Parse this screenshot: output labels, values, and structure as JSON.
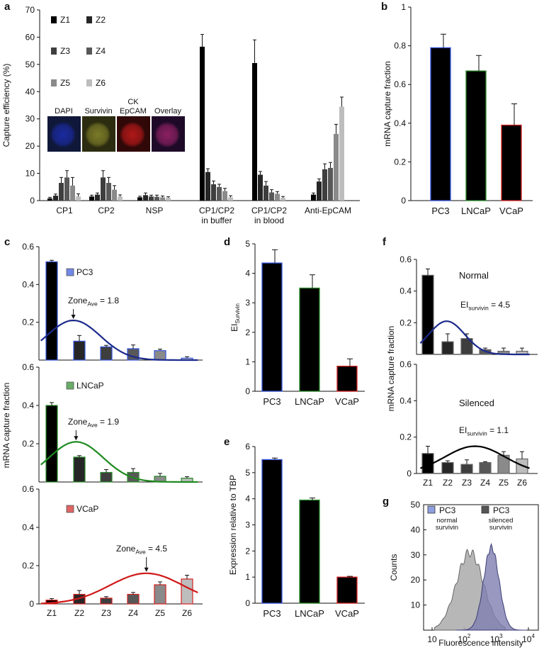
{
  "colors": {
    "PC3": "#3355dd",
    "LNCaP": "#2a8a2a",
    "VCaP": "#d22222",
    "Z1": "#000000",
    "Z2": "#262626",
    "Z3": "#3e3e3e",
    "Z4": "#585858",
    "Z5": "#8a8a8a",
    "Z6": "#bdbdbd",
    "fitPC3": "#1c2a8c",
    "fitLNCaP": "#1f8a1f",
    "fitVCaP": "#d01818",
    "fitSilenced": "#000000",
    "histNormal": "#aaaaaa",
    "histSilenced": "#7e7eb0"
  },
  "chart_data": [
    {
      "panel": "a",
      "type": "bar",
      "ylabel": "Capture efficiency (%)",
      "ylim": [
        0,
        70
      ],
      "yticks": [
        "0",
        "10",
        "20",
        "30",
        "40",
        "50",
        "60",
        "70"
      ],
      "categories": [
        "CP1",
        "CP2",
        "NSP",
        "CP1/CP2|in buffer",
        "CP1/CP2|in blood",
        "Anti-EpCAM"
      ],
      "legend": [
        "Z1",
        "Z2",
        "Z3",
        "Z4",
        "Z5",
        "Z6"
      ],
      "series": [
        {
          "name": "Z1",
          "values": [
            0.8,
            1.5,
            1.2,
            56.5,
            50.5,
            2.2
          ],
          "errors": [
            0.4,
            0.5,
            0.4,
            4.5,
            8.5,
            0.6
          ]
        },
        {
          "name": "Z2",
          "values": [
            1.8,
            2.2,
            2.0,
            10.5,
            9.5,
            7.0
          ],
          "errors": [
            0.6,
            0.6,
            0.8,
            1.2,
            1.2,
            1.0
          ]
        },
        {
          "name": "Z3",
          "values": [
            6.5,
            8.5,
            1.5,
            6.0,
            5.5,
            11.5
          ],
          "errors": [
            2.0,
            2.5,
            0.5,
            1.2,
            1.5,
            2.0
          ]
        },
        {
          "name": "Z4",
          "values": [
            8.5,
            6.5,
            1.4,
            5.0,
            3.0,
            12.0
          ],
          "errors": [
            2.5,
            2.0,
            0.6,
            1.0,
            1.0,
            2.0
          ]
        },
        {
          "name": "Z5",
          "values": [
            5.5,
            4.0,
            1.2,
            3.5,
            2.5,
            24.5
          ],
          "errors": [
            3.0,
            1.5,
            0.5,
            1.0,
            0.8,
            3.5
          ]
        },
        {
          "name": "Z6",
          "values": [
            1.5,
            1.5,
            1.0,
            1.2,
            1.0,
            34.5
          ],
          "errors": [
            1.0,
            0.6,
            0.4,
            0.6,
            0.5,
            3.5
          ]
        }
      ],
      "inset_labels": [
        "DAPI",
        "Survivin",
        "CK|EpCAM",
        "Overlay"
      ]
    },
    {
      "panel": "b",
      "type": "bar",
      "ylabel": "mRNA capture fraction",
      "ylim": [
        0,
        1
      ],
      "yticks": [
        "0",
        "0.2",
        "0.4",
        "0.6",
        "0.8",
        "1"
      ],
      "categories": [
        "PC3",
        "LNCaP",
        "VCaP"
      ],
      "values": [
        0.79,
        0.67,
        0.39
      ],
      "errors": [
        0.07,
        0.08,
        0.11
      ]
    },
    {
      "panel": "c",
      "type": "bar",
      "ylabel": "mRNA capture fraction",
      "ylim": [
        0,
        0.6
      ],
      "categories": [
        "Z1",
        "Z2",
        "Z3",
        "Z4",
        "Z5",
        "Z6"
      ],
      "subplots": [
        {
          "name": "PC3",
          "yticks": [
            "0.2",
            "0.4",
            "0.6"
          ],
          "values": [
            0.52,
            0.1,
            0.07,
            0.06,
            0.05,
            0.01
          ],
          "errors": [
            0.008,
            0.03,
            0.008,
            0.02,
            0.008,
            0.008
          ],
          "fit_label_base": "Zone",
          "fit_label_sub": "Ave",
          "fit_label_value": "= 1.8",
          "fit_peak": 1.8
        },
        {
          "name": "LNCaP",
          "yticks": [
            "0.2",
            "0.4",
            "0.6"
          ],
          "values": [
            0.4,
            0.13,
            0.05,
            0.05,
            0.03,
            0.02
          ],
          "errors": [
            0.015,
            0.008,
            0.015,
            0.02,
            0.015,
            0.008
          ],
          "fit_label_base": "Zone",
          "fit_label_sub": "Ave",
          "fit_label_value": "= 1.9",
          "fit_peak": 1.9
        },
        {
          "name": "VCaP",
          "yticks": [
            "0",
            "0.2",
            "0.4",
            "0.6"
          ],
          "values": [
            0.02,
            0.05,
            0.03,
            0.05,
            0.1,
            0.13
          ],
          "errors": [
            0.008,
            0.02,
            0.008,
            0.01,
            0.015,
            0.02
          ],
          "fit_label_base": "Zone",
          "fit_label_sub": "Ave",
          "fit_label_value": "= 4.5",
          "fit_peak": 4.5
        }
      ]
    },
    {
      "panel": "d",
      "type": "bar",
      "ylabel_base": "EI",
      "ylabel_sub": "Survivin",
      "ylim": [
        0,
        5
      ],
      "yticks": [
        "0",
        "1",
        "2",
        "3",
        "4",
        "5"
      ],
      "categories": [
        "PC3",
        "LNCaP",
        "VCaP"
      ],
      "values": [
        4.35,
        3.5,
        0.85
      ],
      "errors": [
        0.45,
        0.45,
        0.25
      ]
    },
    {
      "panel": "e",
      "type": "bar",
      "ylabel": "Expression relative to TBP",
      "ylim": [
        0,
        6
      ],
      "yticks": [
        "0",
        "1",
        "2",
        "3",
        "4",
        "5",
        "6"
      ],
      "categories": [
        "PC3",
        "LNCaP",
        "VCaP"
      ],
      "values": [
        5.5,
        3.95,
        1.0
      ],
      "errors": [
        0.06,
        0.08,
        0.03
      ]
    },
    {
      "panel": "f",
      "type": "bar",
      "ylabel": "mRNA capture fraction",
      "ylim": [
        0,
        0.6
      ],
      "categories": [
        "Z1",
        "Z2",
        "Z3",
        "Z4",
        "Z5",
        "Z6"
      ],
      "subplots": [
        {
          "name": "Normal",
          "yticks": [
            "0.2",
            "0.4",
            "0.6"
          ],
          "values": [
            0.5,
            0.08,
            0.1,
            0.03,
            0.02,
            0.02
          ],
          "errors": [
            0.04,
            0.05,
            0.03,
            0.01,
            0.02,
            0.02
          ],
          "fit_label_base": "EI",
          "fit_label_sub": "survivin",
          "fit_label_value": "= 4.5",
          "fit_peak": 2.0
        },
        {
          "name": "Silenced",
          "yticks": [
            "0",
            "0.2",
            "0.4",
            "0.6"
          ],
          "values": [
            0.11,
            0.06,
            0.05,
            0.06,
            0.1,
            0.08
          ],
          "errors": [
            0.04,
            0.01,
            0.025,
            0.005,
            0.02,
            0.04
          ],
          "fit_label_base": "EI",
          "fit_label_sub": "survivin",
          "fit_label_value": "= 1.1",
          "fit_peak": 3.5
        }
      ]
    },
    {
      "panel": "g",
      "type": "area",
      "xlabel": "Fluorescence intensity",
      "ylabel": "Counts",
      "ylim": [
        0,
        50
      ],
      "yticks": [
        "10",
        "20",
        "30",
        "40",
        "50"
      ],
      "xscale": "log",
      "xlim": [
        10,
        10000
      ],
      "xticks": [
        {
          "base": "10",
          "exp": ""
        },
        {
          "base": "10",
          "exp": "2"
        },
        {
          "base": "10",
          "exp": "3"
        },
        {
          "base": "10",
          "exp": "4"
        }
      ],
      "series": [
        {
          "name": "PC3",
          "note": "normal|survivin",
          "peak_x": 150,
          "peak_y": 31
        },
        {
          "name": "PC3",
          "note": "silenced|survivin",
          "peak_x": 700,
          "peak_y": 33
        }
      ]
    }
  ],
  "panel_letters": [
    "a",
    "b",
    "c",
    "d",
    "e",
    "f",
    "g"
  ]
}
